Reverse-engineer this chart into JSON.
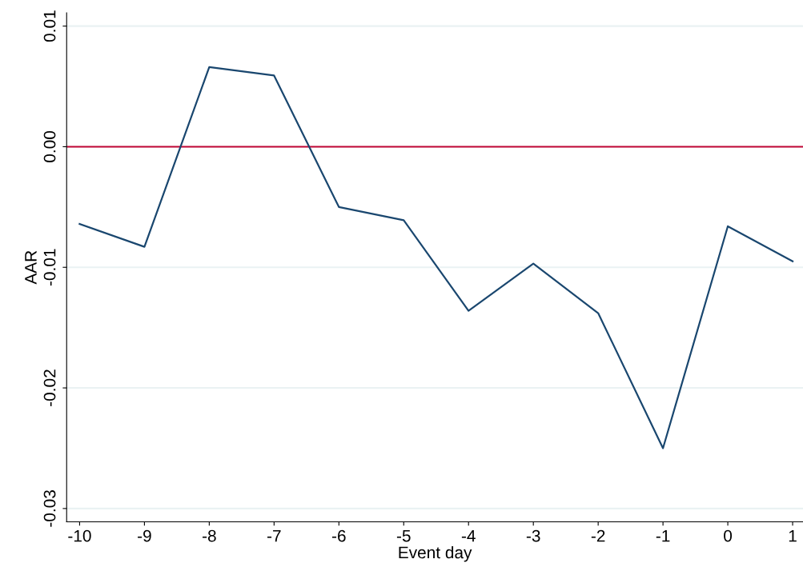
{
  "chart_data": {
    "type": "line",
    "xlabel": "Event day",
    "ylabel": "AAR",
    "x": [
      -10,
      -9,
      -8,
      -7,
      -6,
      -5,
      -4,
      -3,
      -2,
      -1,
      0,
      1
    ],
    "series": [
      {
        "color": "#1a476f",
        "values": [
          -0.0064,
          -0.0083,
          0.0066,
          0.0059,
          -0.005,
          -0.0061,
          -0.0136,
          -0.0097,
          -0.0138,
          -0.025,
          -0.0066,
          -0.0095
        ]
      }
    ],
    "xlim": [
      -10.2,
      1.16
    ],
    "ylim": [
      -0.0311,
      0.0111
    ],
    "xticks": [
      -10,
      -9,
      -8,
      -7,
      -6,
      -5,
      -4,
      -3,
      -2,
      -1,
      0,
      1
    ],
    "yticks": [
      {
        "value": -0.03,
        "label": "-0.03"
      },
      {
        "value": -0.02,
        "label": "-0.02"
      },
      {
        "value": -0.01,
        "label": "-0.01"
      },
      {
        "value": 0,
        "label": "0.00"
      },
      {
        "value": 0.01,
        "label": "0.01"
      }
    ],
    "grid": "y",
    "legend": false,
    "ref_lines": [
      {
        "axis": "y",
        "value": 0,
        "color": "#c10534"
      }
    ]
  }
}
